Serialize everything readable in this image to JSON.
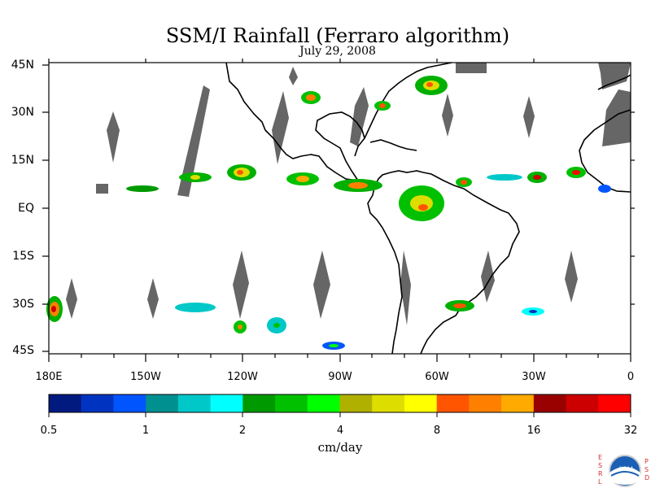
{
  "title": "SSM/I Rainfall (Ferraro algorithm)",
  "subtitle": "July 29, 2008",
  "lat_labels": [
    "45N",
    "30N",
    "15N",
    "EQ",
    "15S",
    "30S",
    "45S"
  ],
  "lon_labels": [
    "180E",
    "150W",
    "120W",
    "90W",
    "60W",
    "30W",
    "0"
  ],
  "colorbar": {
    "colors": [
      "#001a80",
      "#0033c0",
      "#0055ff",
      "#009090",
      "#00c8c8",
      "#00ffff",
      "#009900",
      "#00c000",
      "#00ff00",
      "#b0b000",
      "#dddd00",
      "#ffff00",
      "#ff5500",
      "#ff8000",
      "#ffaa00",
      "#990000",
      "#cc0000",
      "#ff0000"
    ],
    "tick_labels": [
      "0.5",
      "1",
      "2",
      "4",
      "8",
      "16",
      "32"
    ],
    "unit": "cm/day"
  },
  "logo": {
    "left_letters": "ESRL",
    "right_letters": "PSD",
    "badge_text": "NOAA"
  }
}
